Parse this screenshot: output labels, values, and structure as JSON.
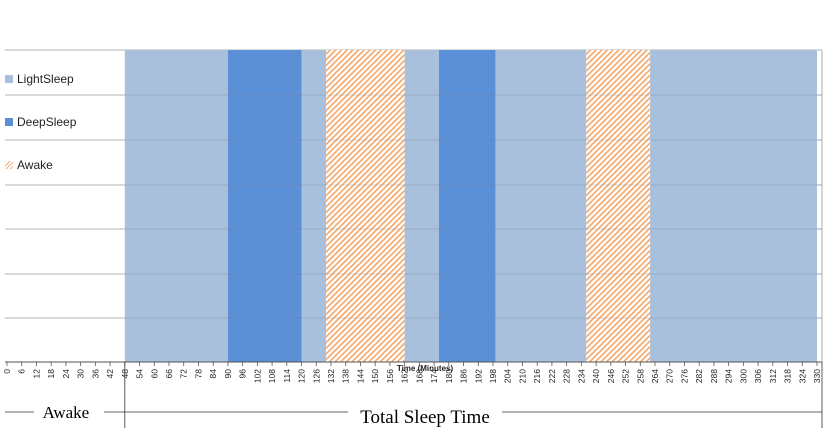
{
  "chart_data": {
    "type": "bar",
    "xlabel": "Time (Minutes)",
    "x_ticks": [
      0,
      6,
      12,
      18,
      24,
      30,
      36,
      42,
      48,
      54,
      60,
      66,
      72,
      78,
      84,
      90,
      96,
      102,
      108,
      114,
      120,
      126,
      132,
      138,
      144,
      150,
      156,
      162,
      168,
      174,
      180,
      186,
      192,
      198,
      204,
      210,
      216,
      222,
      228,
      234,
      240,
      246,
      252,
      258,
      264,
      270,
      276,
      282,
      288,
      294,
      300,
      306,
      312,
      318,
      324,
      330
    ],
    "xlim": [
      0,
      330
    ],
    "grid": true,
    "legend_position": "left",
    "legend": [
      {
        "name": "LightSleep",
        "color": "#a9c0dc",
        "pattern": "solid"
      },
      {
        "name": "DeepSleep",
        "color": "#5b8fd6",
        "pattern": "solid"
      },
      {
        "name": "Awake",
        "color": "#f5b07a",
        "pattern": "hatched"
      }
    ],
    "segments": [
      {
        "stage": "LightSleep",
        "start": 48,
        "end": 90
      },
      {
        "stage": "DeepSleep",
        "start": 90,
        "end": 120
      },
      {
        "stage": "LightSleep",
        "start": 120,
        "end": 130
      },
      {
        "stage": "Awake",
        "start": 130,
        "end": 162
      },
      {
        "stage": "LightSleep",
        "start": 162,
        "end": 176
      },
      {
        "stage": "DeepSleep",
        "start": 176,
        "end": 199
      },
      {
        "stage": "LightSleep",
        "start": 199,
        "end": 236
      },
      {
        "stage": "Awake",
        "start": 236,
        "end": 262
      },
      {
        "stage": "LightSleep",
        "start": 262,
        "end": 330
      }
    ]
  },
  "annotations": {
    "awake_label": "Awake",
    "total_sleep_label": "Total Sleep Time",
    "awake_range": [
      0,
      48
    ],
    "total_sleep_range": [
      48,
      330
    ]
  }
}
